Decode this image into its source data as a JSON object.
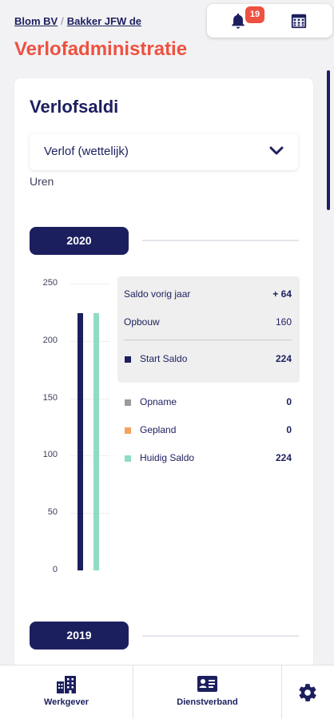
{
  "breadcrumb": {
    "employer": "Blom BV",
    "separator": "/",
    "employee": "Bakker JFW de"
  },
  "page": {
    "title": "Verlofadministratie"
  },
  "header": {
    "notifications_count": "19",
    "icons": [
      "bell-icon",
      "calendar-icon"
    ]
  },
  "card": {
    "title": "Verlofsaldi",
    "leave_type": "Verlof (wettelijk)",
    "unit": "Uren"
  },
  "years": {
    "current": "2020",
    "previous": "2019"
  },
  "chart_data": {
    "type": "bar",
    "categories": [
      "Start Saldo",
      "Huidig Saldo"
    ],
    "values": [
      224,
      224
    ],
    "colors": [
      "#1c1f5e",
      "#8fdcc4"
    ],
    "ylim": [
      0,
      250
    ],
    "yticks": [
      "250",
      "200",
      "150",
      "100",
      "50",
      "0"
    ],
    "title": "",
    "xlabel": "",
    "ylabel": "Uren"
  },
  "summary": {
    "saldo_vorig_jaar": {
      "label": "Saldo vorig jaar",
      "value": "+ 64"
    },
    "opbouw": {
      "label": "Opbouw",
      "value": "160"
    },
    "start_saldo": {
      "label": "Start Saldo",
      "value": "224",
      "color": "#1c1f5e"
    },
    "opname": {
      "label": "Opname",
      "value": "0",
      "color": "#9a9a9a"
    },
    "gepland": {
      "label": "Gepland",
      "value": "0",
      "color": "#f4a35c"
    },
    "huidig_saldo": {
      "label": "Huidig Saldo",
      "value": "224",
      "color": "#8fdcc4"
    }
  },
  "nav": {
    "werkgever": "Werkgever",
    "dienstverband": "Dienstverband",
    "settings_icon": "gear-icon"
  },
  "colors": {
    "primary": "#1c1f5e",
    "accent": "#ee5140"
  }
}
